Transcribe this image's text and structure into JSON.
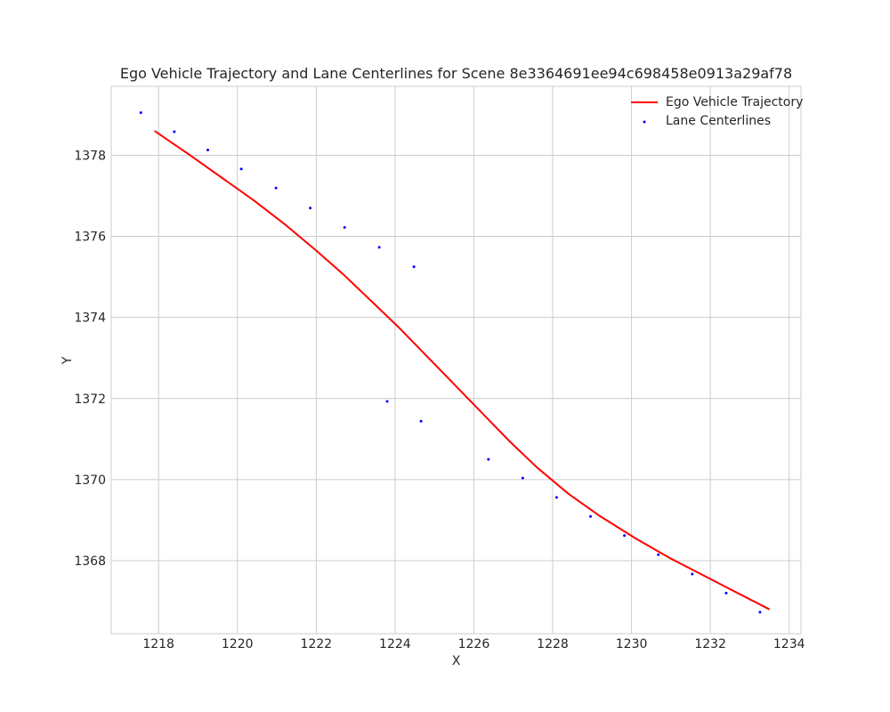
{
  "chart_data": {
    "type": "line",
    "title": "Ego Vehicle Trajectory and Lane Centerlines for Scene 8e3364691ee94c698458e0913a29af78",
    "xlabel": "X",
    "ylabel": "Y",
    "xlim": [
      1216.8,
      1234.3
    ],
    "ylim": [
      1366.2,
      1379.7
    ],
    "xticks": [
      1218,
      1220,
      1222,
      1224,
      1226,
      1228,
      1230,
      1232,
      1234
    ],
    "yticks": [
      1368,
      1370,
      1372,
      1374,
      1376,
      1378
    ],
    "grid": true,
    "legend_position": "top-right",
    "colors": {
      "trajectory": "#ff0000",
      "centerline": "#0000ff",
      "grid": "#cccccc",
      "frame": "#cccccc"
    },
    "series": [
      {
        "name": "Ego Vehicle Trajectory",
        "kind": "line",
        "x": [
          1217.9,
          1218.8,
          1219.6,
          1220.4,
          1221.2,
          1222.0,
          1222.7,
          1223.4,
          1224.1,
          1224.8,
          1225.5,
          1226.2,
          1226.9,
          1227.6,
          1228.4,
          1229.2,
          1230.1,
          1231.0,
          1232.0,
          1233.0,
          1233.5
        ],
        "y": [
          1378.6,
          1378.0,
          1377.45,
          1376.9,
          1376.3,
          1375.65,
          1375.05,
          1374.4,
          1373.75,
          1373.05,
          1372.35,
          1371.65,
          1370.95,
          1370.3,
          1369.65,
          1369.1,
          1368.55,
          1368.05,
          1367.55,
          1367.05,
          1366.8
        ]
      },
      {
        "name": "Lane Centerlines",
        "kind": "scatter",
        "x": [
          1217.55,
          1218.4,
          1219.25,
          1220.1,
          1220.98,
          1221.85,
          1222.72,
          1223.6,
          1224.48,
          1223.8,
          1224.66,
          1226.37,
          1227.24,
          1228.1,
          1228.96,
          1229.82,
          1230.68,
          1231.54,
          1232.4,
          1233.26
        ],
        "y": [
          1379.05,
          1378.58,
          1378.13,
          1377.66,
          1377.19,
          1376.7,
          1376.22,
          1375.73,
          1375.25,
          1371.93,
          1371.44,
          1370.5,
          1370.04,
          1369.56,
          1369.09,
          1368.62,
          1368.15,
          1367.67,
          1367.2,
          1366.73
        ]
      }
    ]
  }
}
